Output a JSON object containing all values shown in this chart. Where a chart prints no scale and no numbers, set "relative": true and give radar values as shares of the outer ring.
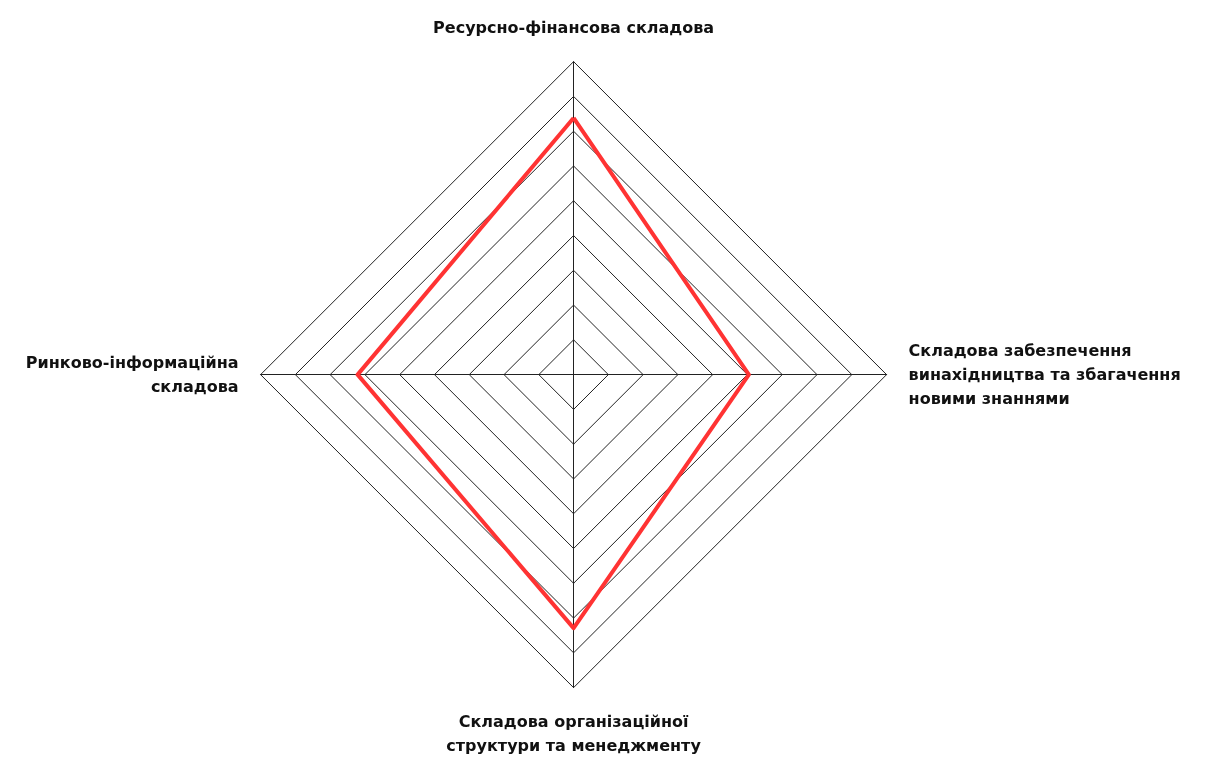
{
  "chart_data": {
    "type": "radar",
    "relative": true,
    "categories": [
      "Ресурсно-фінансова складова",
      "Складова забезпечення винахідництва та збагачення новими знаннями",
      "Складова організаційної структури та менеджменту",
      "Ринково-інформаційна складова"
    ],
    "series": [
      {
        "color": "#ff3333",
        "values": [
          0.82,
          0.56,
          0.81,
          0.69
        ]
      }
    ],
    "marker": "none"
  }
}
